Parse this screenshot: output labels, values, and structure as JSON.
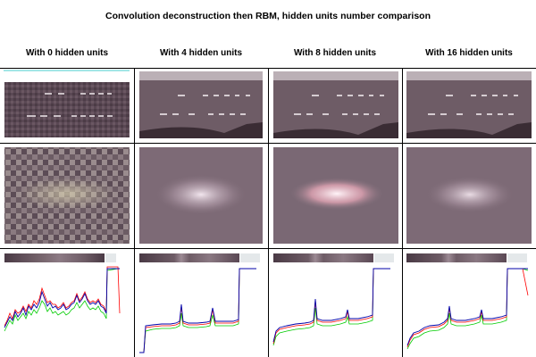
{
  "figure": {
    "title": "Convolution deconstruction then RBM, hidden units number comparison",
    "columns": [
      {
        "label": "With 0 hidden units"
      },
      {
        "label": "With 4 hidden units"
      },
      {
        "label": "With 8 hidden units"
      },
      {
        "label": "With 16 hidden units"
      }
    ],
    "rows": [
      "gel-image",
      "blob-reconstruction",
      "intensity-profile"
    ],
    "colors": {
      "gel_dark": "#4a3a45",
      "gel_mid": "#6e5c66",
      "band": "#e8e0e4",
      "profile_red": "#ff0000",
      "profile_green": "#00cc00",
      "profile_blue": "#0000aa",
      "cyan_line": "#44cccc"
    }
  }
}
